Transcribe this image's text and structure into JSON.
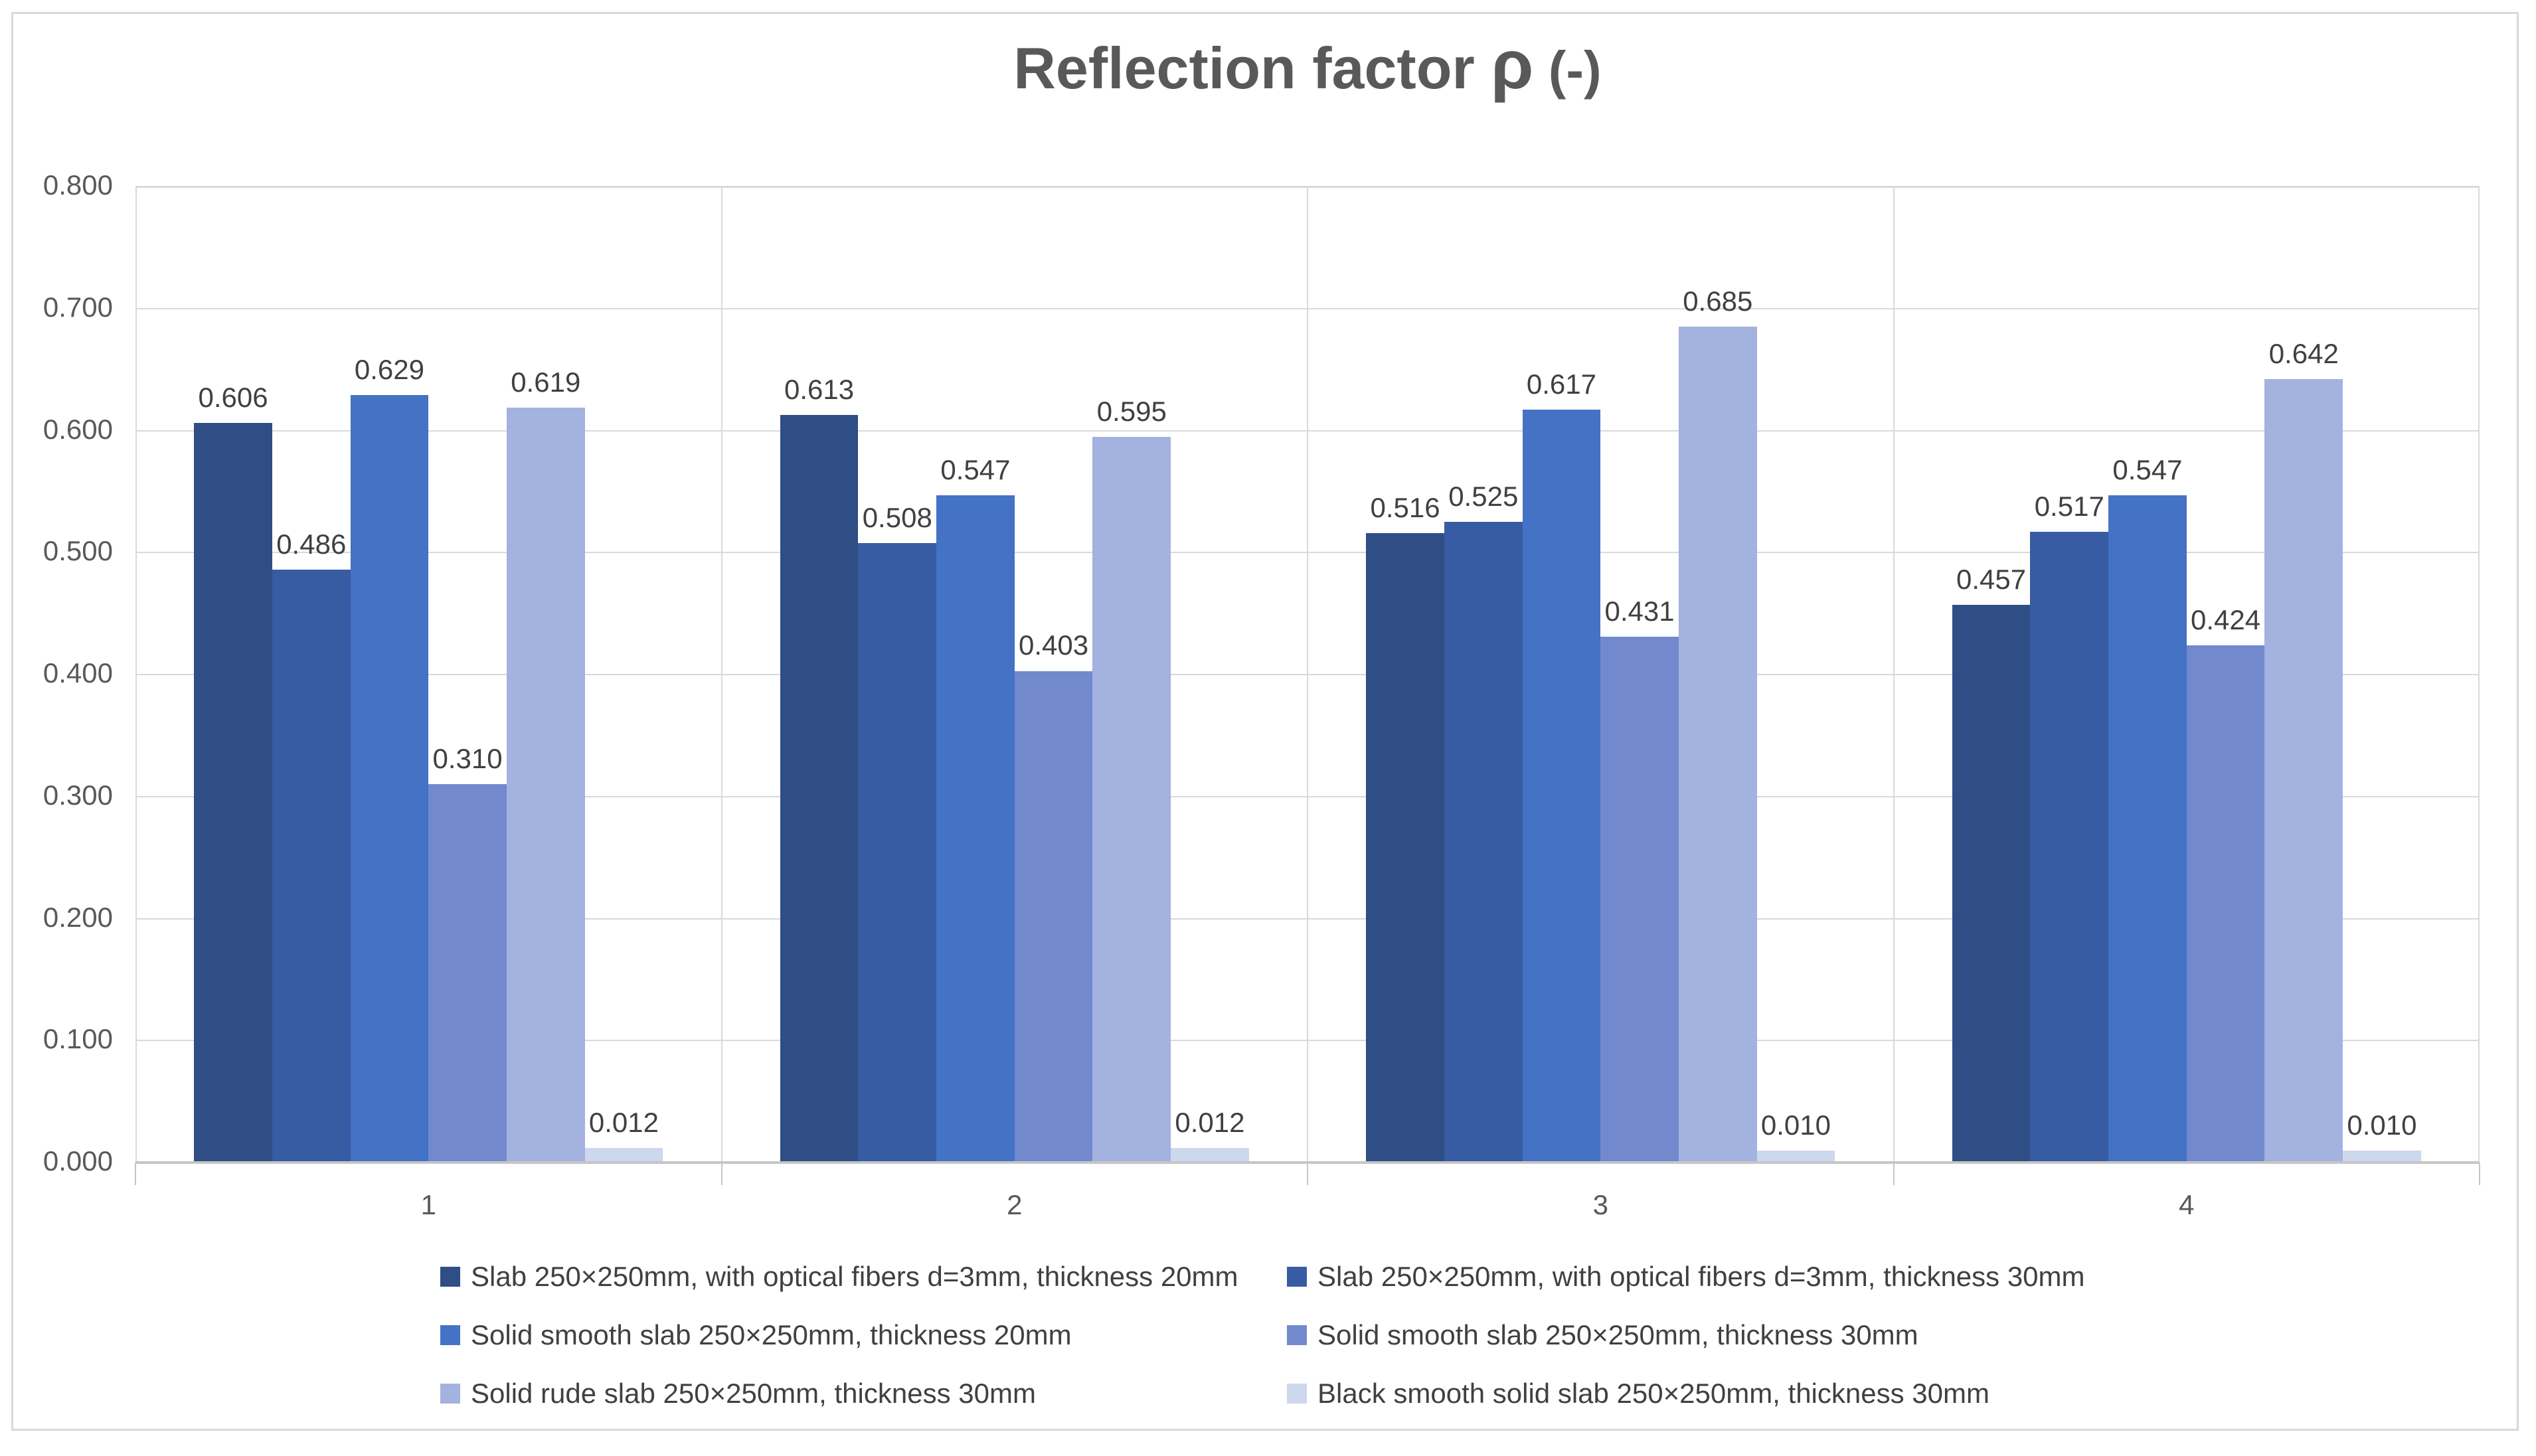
{
  "chart_data": {
    "type": "bar",
    "title": "Reflection factor ρ (-)",
    "title_main": "Reflection factor ",
    "title_symbol": "ρ",
    "title_unit": " (-)",
    "categories": [
      "1",
      "2",
      "3",
      "4"
    ],
    "series": [
      {
        "name": "Slab 250×250mm, with optical fibers d=3mm, thickness 20mm",
        "color": "#2F4E86",
        "values": [
          0.606,
          0.613,
          0.516,
          0.457
        ]
      },
      {
        "name": "Slab 250×250mm, with optical fibers d=3mm, thickness 30mm",
        "color": "#375CA3",
        "values": [
          0.486,
          0.508,
          0.525,
          0.517
        ]
      },
      {
        "name": "Solid smooth slab 250×250mm, thickness 20mm",
        "color": "#4472C4",
        "values": [
          0.629,
          0.547,
          0.617,
          0.547
        ]
      },
      {
        "name": "Solid smooth slab 250×250mm, thickness 30mm",
        "color": "#7289CE",
        "values": [
          0.31,
          0.403,
          0.431,
          0.424
        ]
      },
      {
        "name": "Solid rude slab 250×250mm, thickness 30mm",
        "color": "#A3B2DE",
        "values": [
          0.619,
          0.595,
          0.685,
          0.642
        ]
      },
      {
        "name": "Black smooth solid slab 250×250mm, thickness 30mm",
        "color": "#CDD7EE",
        "values": [
          0.012,
          0.012,
          0.01,
          0.01
        ]
      }
    ],
    "ylim": [
      0,
      0.8
    ],
    "ytick_step": 0.1,
    "yticks": [
      "0.000",
      "0.100",
      "0.200",
      "0.300",
      "0.400",
      "0.500",
      "0.600",
      "0.700",
      "0.800"
    ],
    "value_label_decimals": 3,
    "grid": true,
    "legend_position": "bottom"
  },
  "colors": {
    "background": "#FFFFFF",
    "chart_border": "#D9D9D9",
    "gridline": "#D9D9D9",
    "axis_line": "#C6C6C6",
    "title_text": "#595959",
    "axis_text": "#595959",
    "data_label_text": "#404040",
    "legend_text": "#404040"
  }
}
